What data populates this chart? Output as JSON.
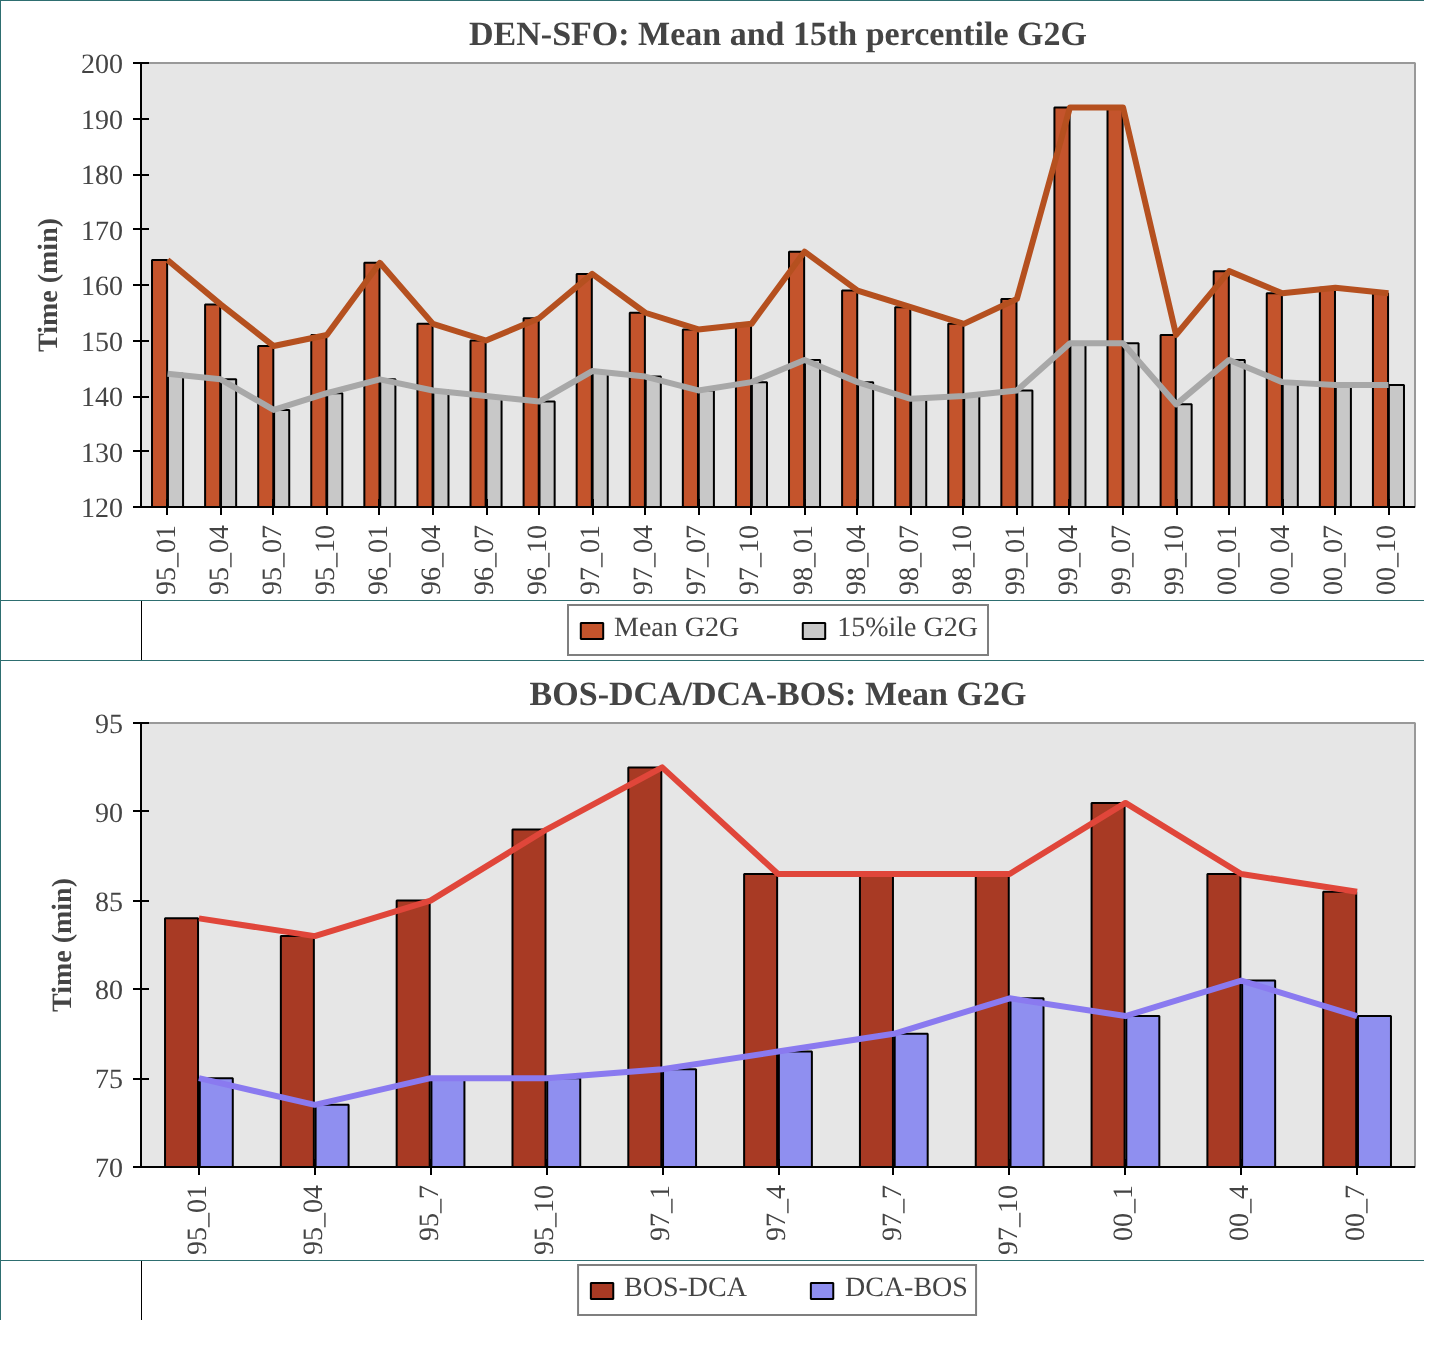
{
  "chart_data": [
    {
      "type": "bar",
      "title": "DEN-SFO: Mean and 15th percentile G2G",
      "ylabel": "Time (min)",
      "categories": [
        "95_01",
        "95_04",
        "95_07",
        "95_10",
        "96_01",
        "96_04",
        "96_07",
        "96_10",
        "97_01",
        "97_04",
        "97_07",
        "97_10",
        "98_01",
        "98_04",
        "98_07",
        "98_10",
        "99_01",
        "99_04",
        "99_07",
        "99_10",
        "00_01",
        "00_04",
        "00_07",
        "00_10"
      ],
      "series": [
        {
          "name": "Mean G2G",
          "color": "#c4542c",
          "values": [
            164.5,
            156.5,
            149,
            151,
            164,
            153,
            150,
            154,
            162,
            155,
            152,
            153,
            166,
            159,
            156,
            153,
            157.5,
            192,
            192,
            151,
            162.5,
            158.5,
            159.5,
            158.5
          ]
        },
        {
          "name": "15%ile G2G",
          "color": "#c8c8c8",
          "values": [
            144,
            143,
            137.5,
            140.5,
            143,
            141,
            140,
            139,
            144.5,
            143.5,
            141,
            142.5,
            146.5,
            142.5,
            139.5,
            140,
            141,
            149.5,
            149.5,
            138.5,
            146.5,
            142.5,
            142,
            142
          ]
        },
        {
          "type": "line",
          "color": "#b5501f",
          "values": [
            164.5,
            156.5,
            149,
            151,
            164,
            153,
            150,
            154,
            162,
            155,
            152,
            153,
            166,
            159,
            156,
            153,
            157.5,
            192,
            192,
            151,
            162.5,
            158.5,
            159.5,
            158.5
          ]
        },
        {
          "type": "line",
          "color": "#a8a8a8",
          "values": [
            144,
            143,
            137.5,
            140.5,
            143,
            141,
            140,
            139,
            144.5,
            143.5,
            141,
            142.5,
            146.5,
            142.5,
            139.5,
            140,
            141,
            149.5,
            149.5,
            138.5,
            146.5,
            142.5,
            142,
            142
          ]
        }
      ],
      "ylim": [
        120,
        200
      ],
      "yticks": [
        120,
        130,
        140,
        150,
        160,
        170,
        180,
        190,
        200
      ],
      "grid": false,
      "legend": "bottom"
    },
    {
      "type": "bar",
      "title": "BOS-DCA/DCA-BOS: Mean G2G",
      "ylabel": "Time (min)",
      "categories": [
        "95_01",
        "95_04",
        "95_7",
        "95_10",
        "97_1",
        "97_4",
        "97_7",
        "97_10",
        "00_1",
        "00_4",
        "00_7"
      ],
      "series": [
        {
          "name": "BOS-DCA",
          "color": "#a83a24",
          "values": [
            84,
            83,
            85,
            89,
            92.5,
            86.5,
            86.5,
            86.5,
            90.5,
            86.5,
            85.5
          ]
        },
        {
          "name": "DCA-BOS",
          "color": "#8f8ff0",
          "values": [
            75,
            73.5,
            75,
            75,
            75.5,
            76.5,
            77.5,
            79.5,
            78.5,
            80.5,
            78.5
          ]
        },
        {
          "type": "line",
          "color": "#e0463a",
          "values": [
            84,
            83,
            85,
            89,
            92.5,
            86.5,
            86.5,
            86.5,
            90.5,
            86.5,
            85.5
          ]
        },
        {
          "type": "line",
          "color": "#8a7af0",
          "values": [
            75,
            73.5,
            75,
            75,
            75.5,
            76.5,
            77.5,
            79.5,
            78.5,
            80.5,
            78.5
          ]
        }
      ],
      "ylim": [
        70,
        95
      ],
      "yticks": [
        70,
        75,
        80,
        85,
        90,
        95
      ],
      "grid": false,
      "legend": "bottom"
    }
  ]
}
